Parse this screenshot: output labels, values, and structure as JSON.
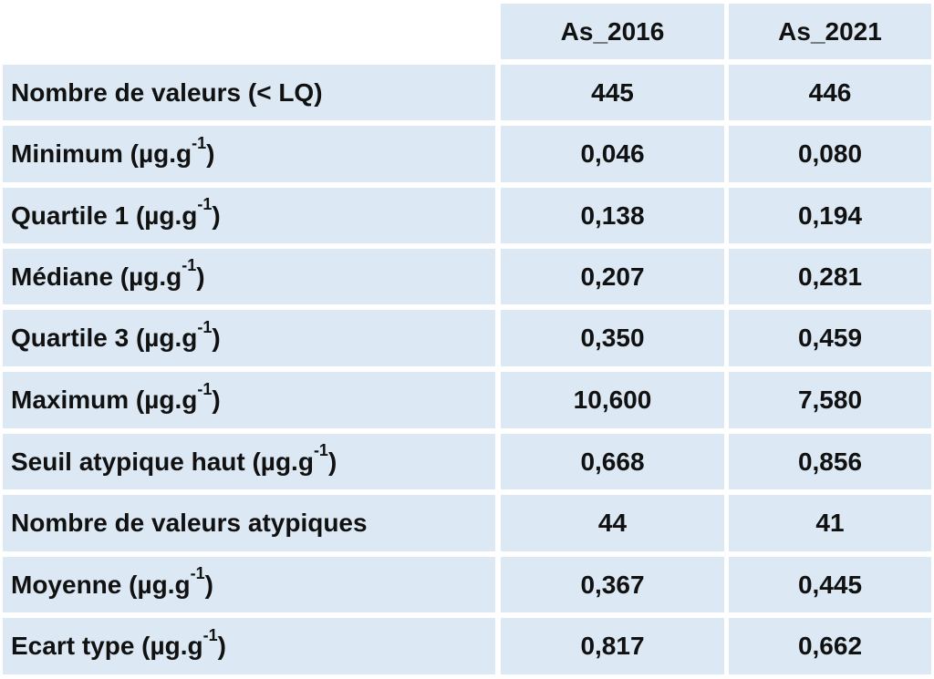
{
  "table": {
    "columns": [
      "As_2016",
      "As_2021"
    ],
    "rows": [
      {
        "label": "Nombre de valeurs (< LQ)",
        "sup": "",
        "suffix": "",
        "values": [
          "445",
          "446"
        ]
      },
      {
        "label": "Minimum (µg.g",
        "sup": "-1",
        "suffix": ")",
        "values": [
          "0,046",
          "0,080"
        ]
      },
      {
        "label": "Quartile 1 (µg.g",
        "sup": "-1",
        "suffix": ")",
        "values": [
          "0,138",
          "0,194"
        ]
      },
      {
        "label": "Médiane (µg.g",
        "sup": "-1",
        "suffix": ")",
        "values": [
          "0,207",
          "0,281"
        ]
      },
      {
        "label": "Quartile 3 (µg.g",
        "sup": "-1",
        "suffix": ")",
        "values": [
          "0,350",
          "0,459"
        ]
      },
      {
        "label": "Maximum (µg.g",
        "sup": "-1",
        "suffix": ")",
        "values": [
          "10,600",
          "7,580"
        ]
      },
      {
        "label": "Seuil atypique haut (µg.g",
        "sup": "-1",
        "suffix": ")",
        "values": [
          "0,668",
          "0,856"
        ]
      },
      {
        "label": "Nombre de valeurs atypiques",
        "sup": "",
        "suffix": "",
        "values": [
          "44",
          "41"
        ]
      },
      {
        "label": "Moyenne (µg.g",
        "sup": "-1",
        "suffix": ")",
        "values": [
          "0,367",
          "0,445"
        ]
      },
      {
        "label": "Ecart type (µg.g",
        "sup": "-1",
        "suffix": ")",
        "values": [
          "0,817",
          "0,662"
        ]
      }
    ]
  }
}
